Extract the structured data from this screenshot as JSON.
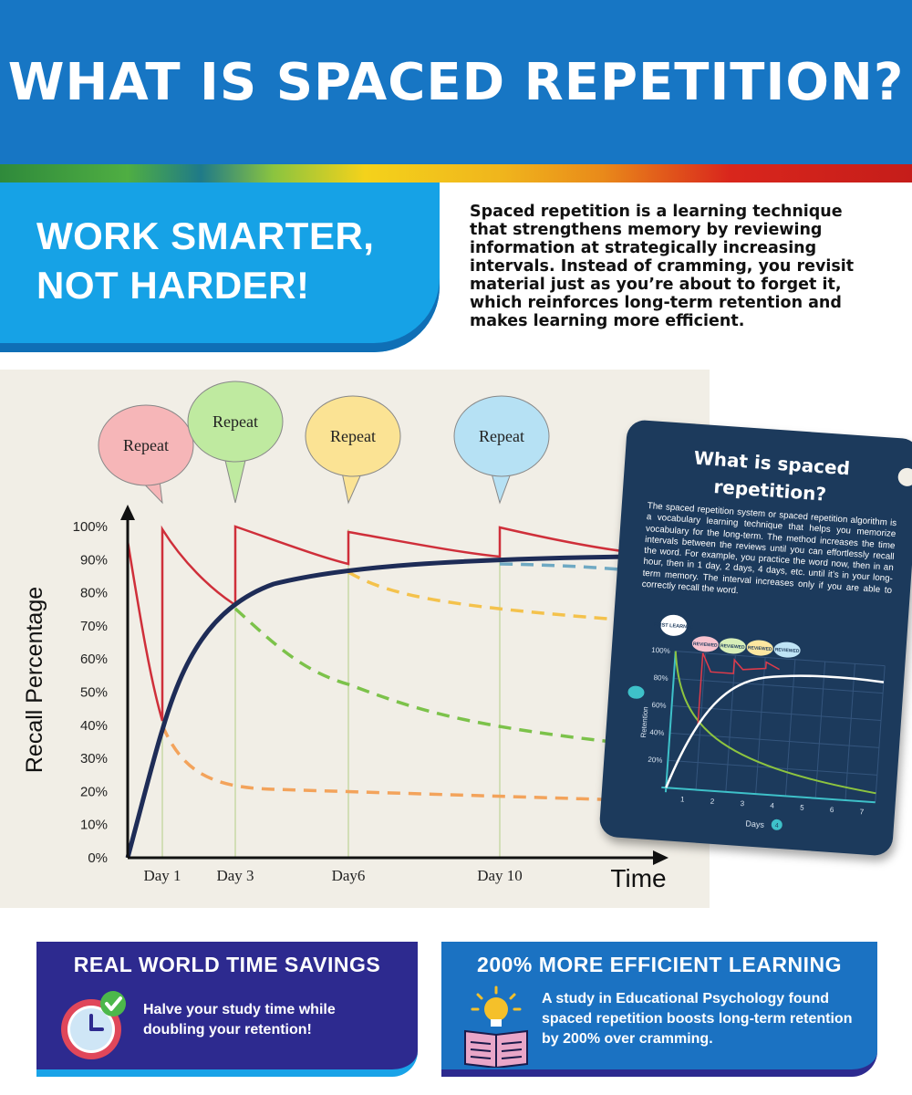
{
  "header": {
    "title": "WHAT IS SPACED REPETITION?"
  },
  "banner": {
    "line1": "WORK SMARTER,",
    "line2": "NOT HARDER!"
  },
  "intro": "Spaced repetition is a learning technique that strengthens memory by reviewing information at strategically increasing intervals. Instead of cramming, you revisit material just as you’re about to forget it, which reinforces long-term retention and makes learning more efficient.",
  "chart_data": [
    {
      "type": "line",
      "title": "",
      "xlabel": "Time",
      "ylabel": "Recall Percentage",
      "ylim": [
        0,
        100
      ],
      "y_ticks": [
        "0%",
        "10%",
        "20%",
        "30%",
        "40%",
        "50%",
        "60%",
        "70%",
        "80%",
        "90%",
        "100%"
      ],
      "x_ticks": [
        "Day 1",
        "Day 3",
        "Day6",
        "Day 10"
      ],
      "annotations": [
        {
          "text": "Repeat",
          "color": "#f6b6b8"
        },
        {
          "text": "Repeat",
          "color": "#bfeaa0"
        },
        {
          "text": "Repeat",
          "color": "#fbe394"
        },
        {
          "text": "Repeat",
          "color": "#b6e1f4"
        }
      ],
      "colors": {
        "forgetting": "#cf2f3a",
        "retention": "#1e2c57",
        "grid": "#c7d8a6"
      }
    },
    {
      "type": "line",
      "title": "What is spaced repetition?",
      "body": "The spaced repetition system or spaced repetition algorithm is a vocabulary learning technique that helps you memorize vocabulary for the long-term. The method increases the time intervals between the reviews until you can effortlessly recall the word. For example, you practice the word now, then in an hour, then in 1 day, 2 days, 4 days, etc. until it’s in your long-term memory. The interval increases only if you are able to correctly recall the word.",
      "xlabel": "Days",
      "ylabel": "Retention",
      "x_ticks": [
        "1",
        "2",
        "3",
        "4",
        "5",
        "6",
        "7"
      ],
      "y_ticks": [
        "20%",
        "40%",
        "60%",
        "80%",
        "100%"
      ],
      "annotations": [
        "FIRST LEARNED",
        "REVIEWED",
        "REVIEWED",
        "REVIEWED",
        "REVIEWED"
      ],
      "colors": {
        "forgetting": "#8dc43f",
        "retention": "#ffffff",
        "reviews": "#e03a4a"
      }
    }
  ],
  "card_badge": "4",
  "box1": {
    "title": "REAL WORLD TIME SAVINGS",
    "text": "Halve your study time while doubling your retention!"
  },
  "box2": {
    "title": "200% MORE EFFICIENT LEARNING",
    "text": "A study in Educational Psychology found spaced repetition boosts long-term retention by 200% over cramming."
  }
}
